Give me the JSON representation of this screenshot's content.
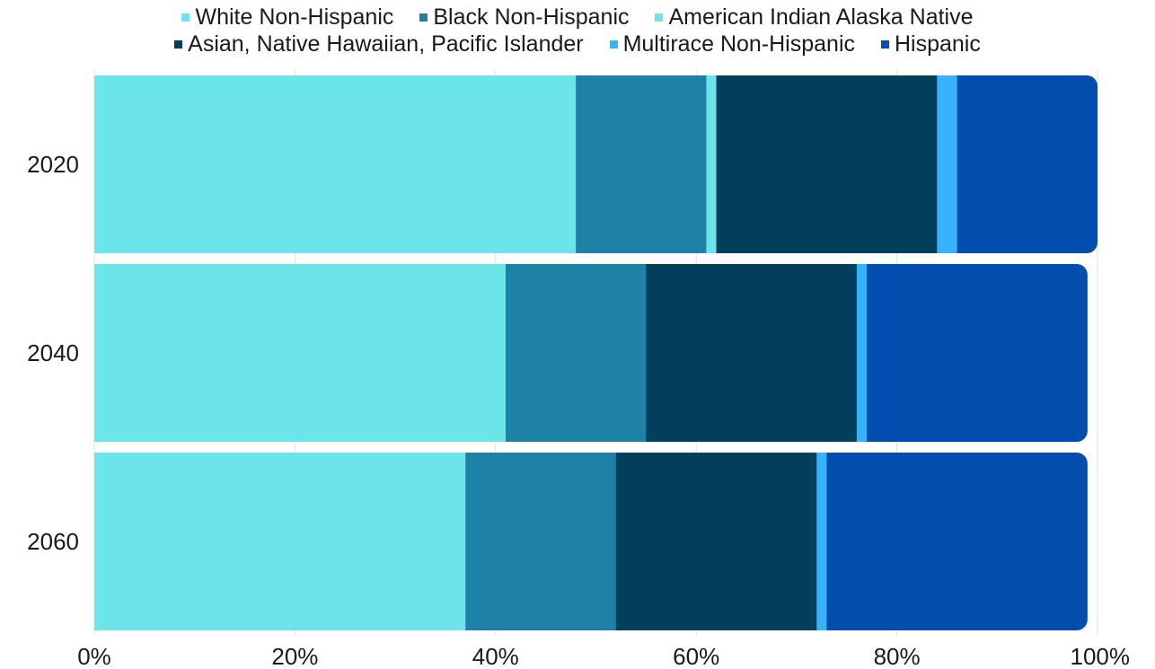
{
  "chart_data": {
    "type": "bar",
    "orientation": "horizontal",
    "stacked": "percent",
    "categories": [
      "2020",
      "2040",
      "2060"
    ],
    "series": [
      {
        "name": "White Non-Hispanic",
        "color": "#6be5e9",
        "values": [
          48,
          41,
          37
        ]
      },
      {
        "name": "Black Non-Hispanic",
        "color": "#1e82a6",
        "values": [
          13,
          14,
          15
        ]
      },
      {
        "name": "American Indian Alaska Native",
        "color": "#6be5e9",
        "values": [
          1,
          0,
          0
        ]
      },
      {
        "name": "Asian, Native Hawaiian, Pacific Islander",
        "color": "#023f5c",
        "values": [
          22,
          21,
          20
        ]
      },
      {
        "name": "Multirace Non-Hispanic",
        "color": "#38b3fb",
        "values": [
          2,
          1,
          1
        ]
      },
      {
        "name": "Hispanic",
        "color": "#034dae",
        "values": [
          14,
          22,
          26
        ]
      }
    ],
    "xlim": [
      0,
      100
    ],
    "x_ticks": [
      "0%",
      "20%",
      "40%",
      "60%",
      "80%",
      "100%"
    ],
    "grid": "vertical",
    "legend": "top-center"
  }
}
